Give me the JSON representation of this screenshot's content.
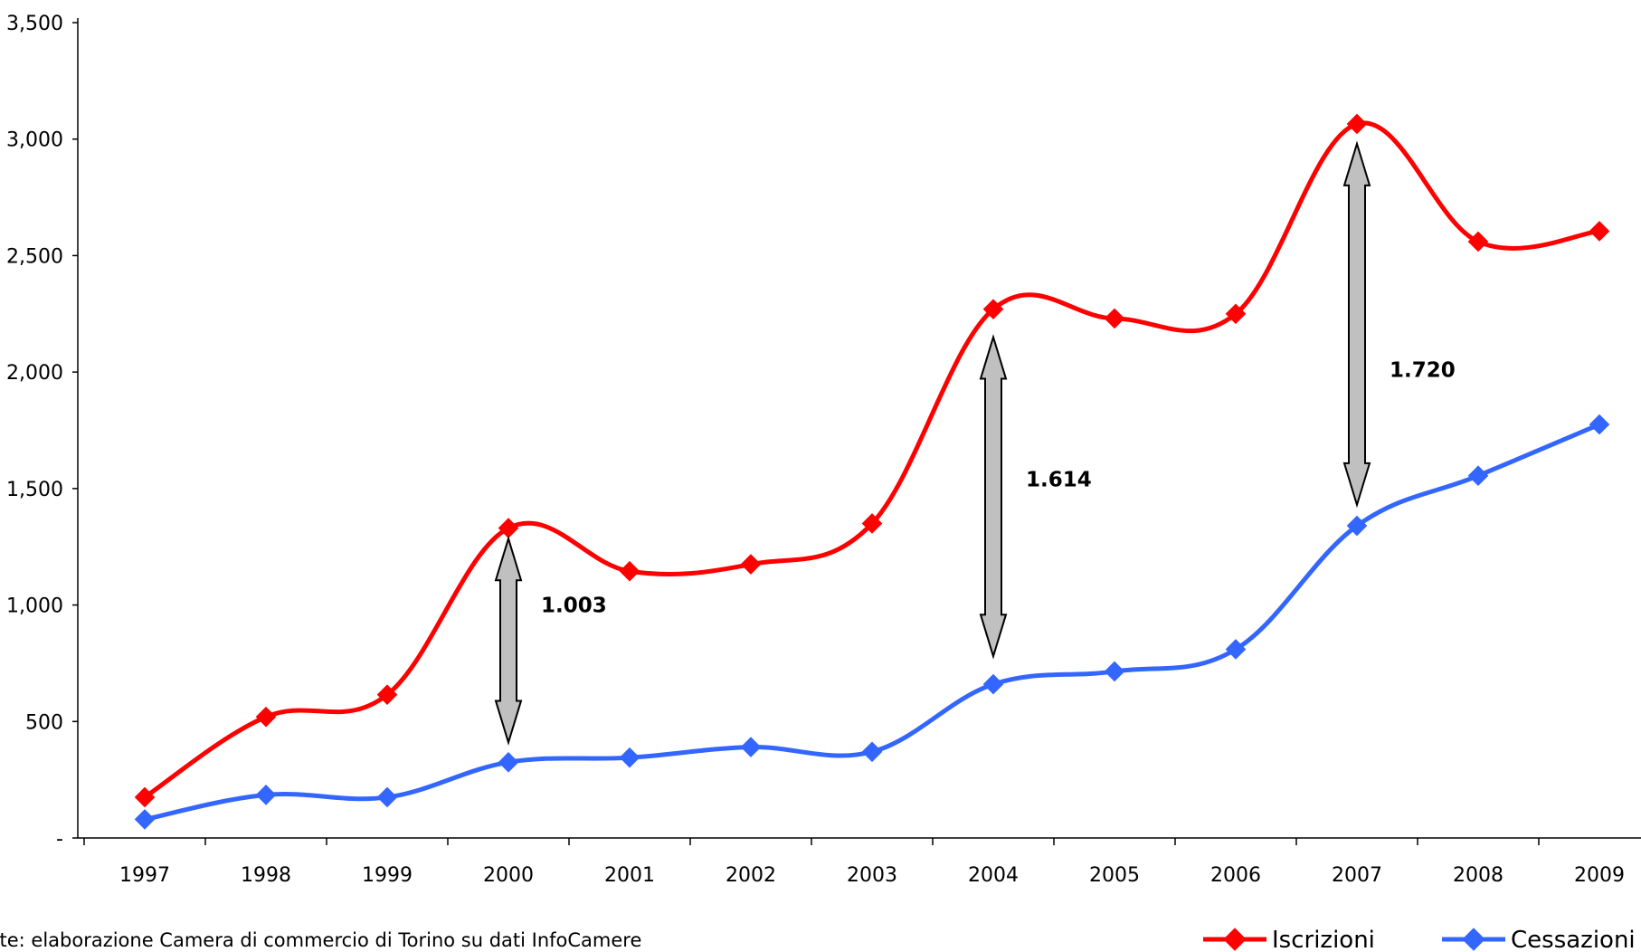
{
  "chart_data": {
    "type": "line",
    "categories": [
      "1997",
      "1998",
      "1999",
      "2000",
      "2001",
      "2002",
      "2003",
      "2004",
      "2005",
      "2006",
      "2007",
      "2008",
      "2009"
    ],
    "ylim": [
      0,
      3500
    ],
    "yticks": [
      {
        "value": 0,
        "label": "-"
      },
      {
        "value": 500,
        "label": "500"
      },
      {
        "value": 1000,
        "label": "1,000"
      },
      {
        "value": 1500,
        "label": "1,500"
      },
      {
        "value": 2000,
        "label": "2,000"
      },
      {
        "value": 2500,
        "label": "2,500"
      },
      {
        "value": 3000,
        "label": "3,000"
      },
      {
        "value": 3500,
        "label": "3,500"
      }
    ],
    "series": [
      {
        "name": "Iscrizioni",
        "color": "#ff0000",
        "values": [
          175,
          520,
          615,
          1330,
          1145,
          1175,
          1350,
          2270,
          2230,
          2250,
          3065,
          2560,
          2605
        ]
      },
      {
        "name": "Cessazioni",
        "color": "#3366ff",
        "values": [
          80,
          185,
          175,
          325,
          345,
          390,
          370,
          660,
          715,
          810,
          1340,
          1555,
          1775
        ]
      }
    ],
    "annotations": [
      {
        "text": "1.003",
        "category": "2000",
        "from": 1285,
        "to": 410,
        "label_value": 1000
      },
      {
        "text": "1.614",
        "category": "2004",
        "from": 2150,
        "to": 780,
        "label_value": 1540
      },
      {
        "text": "1.720",
        "category": "2007",
        "from": 2980,
        "to": 1430,
        "label_value": 2010
      }
    ],
    "grid": false,
    "legend": "bottom-right"
  },
  "source_note": "Fonte: elaborazione Camera di commercio di Torino su dati InfoCamere"
}
